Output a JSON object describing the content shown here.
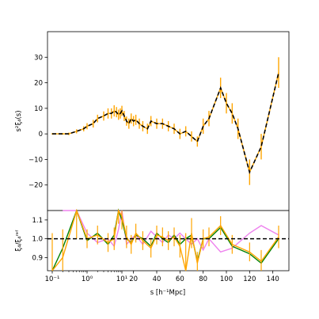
{
  "chart_data": [
    {
      "type": "line",
      "panel": "top",
      "ylabel": "s²ξ₄(s)",
      "ylim": [
        -30,
        40
      ],
      "yticks": [
        -20,
        -10,
        0,
        10,
        20,
        30
      ],
      "ytick_labels": [
        "−20",
        "−10",
        "0",
        "10",
        "20",
        "30"
      ],
      "grid": false,
      "series": [
        {
          "color": "#ffa500",
          "style": "errorbar",
          "x": [
            0.1,
            0.2,
            0.3,
            0.5,
            0.8,
            1.0,
            1.5,
            2,
            3,
            4,
            5,
            6,
            7,
            8,
            9,
            10,
            12,
            14,
            16,
            18,
            20,
            22,
            25,
            28,
            32,
            35,
            40,
            45,
            50,
            55,
            60,
            65,
            70,
            75,
            80,
            85,
            95,
            100,
            105,
            110,
            120,
            130,
            145
          ],
          "y": [
            0,
            0,
            0,
            1,
            2,
            3,
            4,
            6,
            7,
            8,
            8,
            9,
            8.5,
            7.5,
            8,
            9,
            7,
            5,
            4,
            6,
            5,
            5.5,
            4,
            3,
            2,
            5,
            4,
            4,
            3,
            2,
            0,
            1,
            -1,
            -3,
            3,
            6,
            18,
            12,
            8,
            2,
            -15,
            -5,
            24
          ],
          "err": [
            0.3,
            0.3,
            0.5,
            0.8,
            1.0,
            1.2,
            1.5,
            1.5,
            1.8,
            2,
            2,
            2.2,
            2,
            2,
            2,
            2,
            2,
            1.8,
            2,
            2,
            2,
            2,
            2,
            2,
            2,
            2,
            2,
            2,
            2,
            2,
            2,
            2,
            2,
            2,
            3,
            3,
            4,
            4,
            4,
            4,
            5,
            5,
            6
          ]
        },
        {
          "color": "#000000",
          "style": "dashed",
          "x": [
            0.1,
            0.2,
            0.3,
            0.5,
            0.8,
            1.0,
            1.5,
            2,
            3,
            4,
            5,
            6,
            7,
            8,
            9,
            10,
            12,
            14,
            16,
            18,
            20,
            22,
            25,
            28,
            32,
            35,
            40,
            45,
            50,
            55,
            60,
            65,
            70,
            75,
            80,
            85,
            95,
            100,
            105,
            110,
            120,
            130,
            145
          ],
          "y": [
            0,
            0,
            0,
            1,
            2,
            3,
            4,
            6,
            7,
            8,
            8,
            9,
            8.5,
            7.5,
            8,
            9,
            7,
            5,
            4,
            6,
            5,
            5.5,
            4,
            3,
            2,
            5,
            4,
            4,
            3,
            2,
            0,
            1,
            -1,
            -3,
            3,
            6,
            18,
            12,
            8,
            2,
            -15,
            -5,
            24
          ]
        }
      ]
    },
    {
      "type": "line",
      "panel": "bottom",
      "xlabel": "s [h⁻¹Mpc]",
      "ylabel": "ξ₄/ξ₄ʳᵉᶠ",
      "ylim": [
        0.83,
        1.15
      ],
      "yticks": [
        0.9,
        1.0,
        1.1
      ],
      "ytick_labels": [
        "0.9",
        "1.0",
        "1.1"
      ],
      "xticks": [
        0.1,
        1,
        10,
        20,
        40,
        60,
        80,
        100,
        120,
        140
      ],
      "xtick_labels": [
        "10⁻¹",
        "10⁰",
        "10¹",
        "20",
        "40",
        "60",
        "80",
        "100",
        "120",
        "140"
      ],
      "reference_line": 1.0,
      "series": [
        {
          "color": "#ee82ee",
          "x": [
            0.2,
            0.5,
            1.0,
            2,
            4,
            6,
            8,
            10,
            14,
            18,
            22,
            28,
            35,
            40,
            45,
            50,
            55,
            60,
            65,
            70,
            75,
            80,
            85,
            95,
            105,
            120,
            130,
            145
          ],
          "y": [
            1.15,
            1.15,
            1.03,
            0.98,
            1.0,
            0.96,
            1.05,
            1.15,
            0.97,
            1.0,
            1.02,
            0.97,
            1.04,
            1.01,
            0.98,
            1.02,
            1.0,
            1.03,
            1.0,
            0.97,
            1.0,
            0.94,
            1.0,
            0.93,
            0.95,
            1.03,
            1.07,
            1.02
          ]
        },
        {
          "color": "#008000",
          "x": [
            0.1,
            0.2,
            0.5,
            1.0,
            2,
            4,
            6,
            8,
            10,
            14,
            18,
            22,
            28,
            35,
            40,
            45,
            50,
            55,
            60,
            65,
            70,
            75,
            80,
            85,
            95,
            105,
            120,
            130,
            145
          ],
          "y": [
            0.83,
            0.95,
            1.15,
            0.99,
            1.03,
            0.97,
            1.02,
            1.15,
            1.1,
            1.0,
            0.98,
            1.02,
            1.0,
            0.96,
            1.03,
            1.0,
            0.98,
            1.02,
            0.97,
            1.0,
            1.02,
            0.88,
            1.0,
            1.0,
            1.06,
            0.96,
            0.92,
            0.87,
            1.0
          ]
        },
        {
          "color": "#ffa500",
          "x": [
            0.1,
            0.2,
            0.5,
            1.0,
            2,
            4,
            6,
            8,
            10,
            14,
            18,
            22,
            28,
            35,
            40,
            45,
            50,
            55,
            60,
            65,
            70,
            75,
            80,
            85,
            95,
            105,
            120,
            130,
            145
          ],
          "y": [
            0.83,
            0.9,
            1.15,
            1.0,
            1.02,
            0.98,
            1.0,
            1.15,
            1.12,
            1.01,
            0.97,
            1.03,
            0.99,
            0.95,
            1.02,
            1.01,
            0.99,
            1.01,
            0.96,
            0.83,
            1.03,
            0.87,
            1.0,
            1.01,
            1.07,
            0.97,
            0.93,
            0.88,
            1.01
          ],
          "err": [
            0.2,
            0.15,
            0.15,
            0.05,
            0.05,
            0.05,
            0.06,
            0.07,
            0.07,
            0.06,
            0.05,
            0.05,
            0.05,
            0.05,
            0.05,
            0.05,
            0.05,
            0.05,
            0.06,
            0.2,
            0.08,
            0.06,
            0.05,
            0.05,
            0.05,
            0.05,
            0.05,
            0.06,
            0.06
          ]
        }
      ]
    }
  ]
}
